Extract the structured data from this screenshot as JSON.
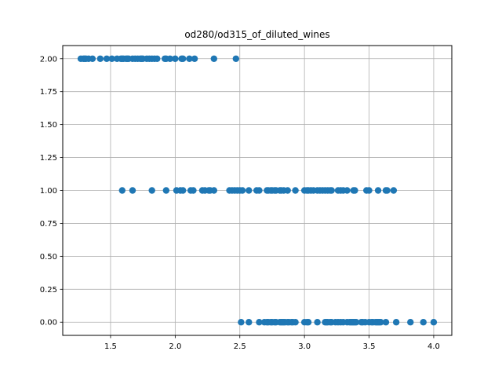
{
  "chart_data": {
    "type": "scatter",
    "title": "od280/od315_of_diluted_wines",
    "xlabel": "",
    "ylabel": "",
    "xlim": [
      1.13,
      4.14
    ],
    "ylim": [
      -0.1,
      2.1
    ],
    "grid": true,
    "legend": "none",
    "marker_color": "#1f77b4",
    "x_ticks": [
      1.5,
      2.0,
      2.5,
      3.0,
      3.5,
      4.0
    ],
    "x_tick_labels": [
      "1.5",
      "2.0",
      "2.5",
      "3.0",
      "3.5",
      "4.0"
    ],
    "y_ticks": [
      0.0,
      0.25,
      0.5,
      0.75,
      1.0,
      1.25,
      1.5,
      1.75,
      2.0
    ],
    "y_tick_labels": [
      "0.00",
      "0.25",
      "0.50",
      "0.75",
      "1.00",
      "1.25",
      "1.50",
      "1.75",
      "2.00"
    ],
    "series": [
      {
        "values_y": 2,
        "x": [
          1.27,
          1.29,
          1.3,
          1.31,
          1.33,
          1.36,
          1.42,
          1.47,
          1.51,
          1.55,
          1.58,
          1.59,
          1.6,
          1.62,
          1.63,
          1.64,
          1.67,
          1.69,
          1.71,
          1.73,
          1.74,
          1.75,
          1.78,
          1.8,
          1.82,
          1.84,
          1.86,
          1.92,
          1.93,
          1.96,
          2.0,
          2.05,
          2.06,
          2.11,
          2.15,
          2.3,
          2.47
        ]
      },
      {
        "values_y": 1,
        "x": [
          1.59,
          1.67,
          1.82,
          1.93,
          2.01,
          2.04,
          2.06,
          2.12,
          2.14,
          2.21,
          2.23,
          2.26,
          2.27,
          2.3,
          2.42,
          2.44,
          2.46,
          2.48,
          2.5,
          2.52,
          2.57,
          2.63,
          2.65,
          2.71,
          2.72,
          2.74,
          2.75,
          2.77,
          2.78,
          2.81,
          2.82,
          2.84,
          2.87,
          2.93,
          3.0,
          3.02,
          3.03,
          3.05,
          3.07,
          3.1,
          3.12,
          3.14,
          3.16,
          3.18,
          3.2,
          3.21,
          3.26,
          3.28,
          3.3,
          3.33,
          3.38,
          3.39,
          3.48,
          3.5,
          3.57,
          3.63,
          3.64,
          3.69
        ]
      },
      {
        "values_y": 0,
        "x": [
          2.51,
          2.57,
          2.65,
          2.69,
          2.71,
          2.72,
          2.74,
          2.75,
          2.77,
          2.78,
          2.81,
          2.82,
          2.83,
          2.84,
          2.85,
          2.87,
          2.88,
          2.9,
          2.91,
          2.93,
          3.0,
          3.02,
          3.03,
          3.1,
          3.16,
          3.17,
          3.18,
          3.2,
          3.21,
          3.24,
          3.26,
          3.28,
          3.3,
          3.33,
          3.35,
          3.36,
          3.37,
          3.38,
          3.39,
          3.4,
          3.44,
          3.45,
          3.47,
          3.5,
          3.52,
          3.53,
          3.55,
          3.56,
          3.57,
          3.58,
          3.59,
          3.63,
          3.71,
          3.82,
          3.92,
          4.0
        ]
      }
    ]
  }
}
